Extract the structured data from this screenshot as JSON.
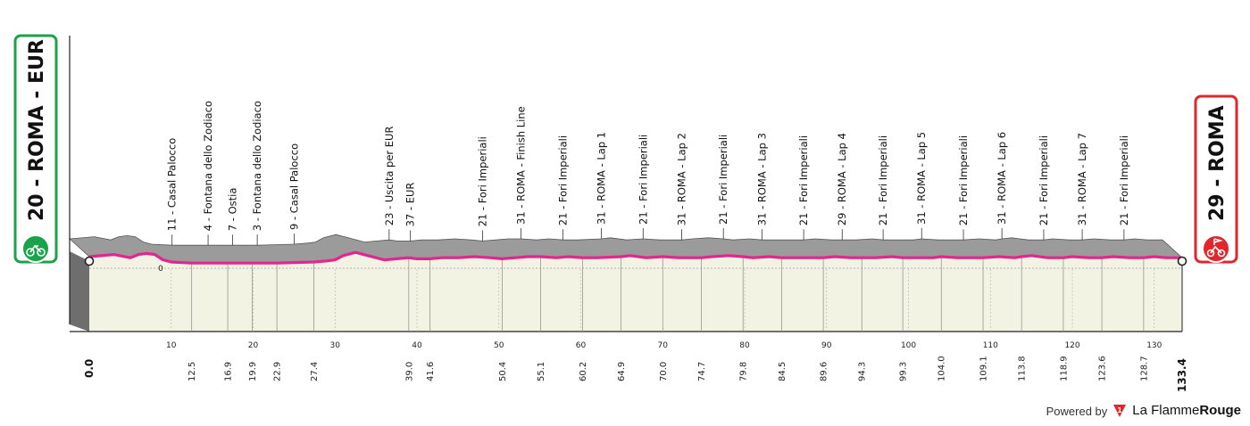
{
  "chart_data": {
    "type": "area",
    "title": "",
    "xlabel": "",
    "ylabel": "",
    "xlim": [
      0,
      133.4
    ],
    "start": {
      "label": "20 - ROMA - EUR",
      "km": "0.0",
      "color": "#1aa34a"
    },
    "finish": {
      "label": "29 - ROMA",
      "km": "133.4",
      "color": "#e3262b"
    },
    "elevation_zero_label": "0",
    "x_ticks": [
      10,
      20,
      30,
      40,
      50,
      60,
      70,
      80,
      90,
      100,
      110,
      120,
      130
    ],
    "waypoints": [
      {
        "km": 12.5,
        "label": "11 - Casal Palocco"
      },
      {
        "km": 16.9,
        "label": "4 - Fontana dello Zodiaco"
      },
      {
        "km": 19.9,
        "label": "7 - Ostia"
      },
      {
        "km": 22.9,
        "label": "3 - Fontana dello Zodiaco"
      },
      {
        "km": 27.4,
        "label": "9 - Casal Palocco"
      },
      {
        "km": 39.0,
        "label": "23 - Uscita per EUR"
      },
      {
        "km": 41.6,
        "label": "37 - EUR"
      },
      {
        "km": 50.4,
        "label": "21 - Fori Imperiali"
      },
      {
        "km": 55.1,
        "label": "31 - ROMA - Finish Line"
      },
      {
        "km": 60.2,
        "label": "21 - Fori Imperiali"
      },
      {
        "km": 64.9,
        "label": "31 - ROMA - Lap 1"
      },
      {
        "km": 70.0,
        "label": "21 - Fori Imperiali"
      },
      {
        "km": 74.7,
        "label": "31 - ROMA - Lap 2"
      },
      {
        "km": 79.8,
        "label": "21 - Fori Imperiali"
      },
      {
        "km": 84.5,
        "label": "31 - ROMA - Lap 3"
      },
      {
        "km": 89.6,
        "label": "21 - Fori Imperiali"
      },
      {
        "km": 94.3,
        "label": "29 - ROMA - Lap 4"
      },
      {
        "km": 99.3,
        "label": "21 - Fori Imperiali"
      },
      {
        "km": 104.0,
        "label": "31 - ROMA - Lap 5"
      },
      {
        "km": 109.1,
        "label": "21 - Fori Imperiali"
      },
      {
        "km": 113.8,
        "label": "31 - ROMA - Lap 6"
      },
      {
        "km": 118.9,
        "label": "21 - Fori Imperiali"
      },
      {
        "km": 123.6,
        "label": "31 - ROMA - Lap 7"
      },
      {
        "km": 128.7,
        "label": "21 - Fori Imperiali"
      }
    ],
    "profile": {
      "km": [
        0,
        3,
        5,
        6,
        7,
        8,
        9,
        10,
        12.5,
        14,
        16.9,
        18,
        19.9,
        21,
        22.9,
        25,
        27.4,
        29,
        30,
        31,
        32.5,
        34,
        36,
        37.5,
        39,
        40,
        41.6,
        43,
        45,
        47,
        49,
        50.4,
        52,
        53.5,
        55.1,
        57,
        58.5,
        60.2,
        62,
        64.9,
        66,
        68,
        70,
        72,
        74.7,
        76,
        78,
        79.8,
        81,
        83,
        84.5,
        86,
        88,
        89.6,
        91,
        93,
        94.3,
        96,
        98,
        99.3,
        101,
        103,
        104,
        106,
        108,
        109.1,
        111,
        113,
        113.8,
        115,
        117,
        118.9,
        120,
        122,
        123.6,
        125,
        127,
        128.7,
        130,
        131.5,
        133.4
      ],
      "elev": [
        25,
        27,
        24,
        27,
        28,
        27,
        22,
        20,
        19,
        19,
        19,
        19,
        19,
        19,
        19,
        19.5,
        20,
        21,
        22,
        26,
        29,
        26,
        22,
        23,
        24,
        23,
        23,
        24,
        24,
        25,
        24,
        23,
        24,
        25,
        25,
        24,
        25,
        24,
        24,
        25,
        26,
        24,
        25,
        24,
        24,
        25,
        26,
        25,
        24,
        25,
        24,
        24,
        24,
        24,
        25,
        24,
        24,
        24,
        25,
        24,
        24,
        24,
        25,
        24,
        24,
        24,
        25,
        24,
        25,
        26,
        24,
        24,
        25,
        24,
        24,
        25,
        24,
        24,
        25,
        24,
        24
      ]
    },
    "grid": false,
    "legend": "none"
  },
  "footer": {
    "powered_by": "Powered by",
    "brand_a": "La Flamme",
    "brand_b": "Rouge",
    "logo_digit": "1"
  }
}
